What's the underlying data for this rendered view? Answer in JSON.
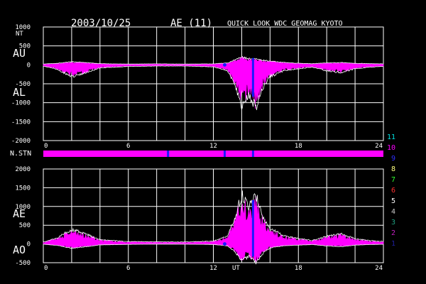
{
  "header": {
    "date": "2003/10/25",
    "index": "AE (11)",
    "source": "QUICK LOOK  WDC GEOMAG KYOTO"
  },
  "colors": {
    "background": "#000000",
    "data_fill": "#ff00ff",
    "envelope": "#ffffff",
    "marker": "#1a1aff",
    "grid": "#ffffff"
  },
  "chart_data": [
    {
      "type": "area",
      "panel": "upper",
      "unit_label": "NT",
      "series": [
        {
          "name": "AU",
          "x": [
            0,
            1,
            2,
            3,
            4,
            6,
            8,
            10,
            12,
            13,
            13.5,
            14,
            14.5,
            15,
            15.5,
            16,
            17,
            18,
            19,
            20,
            21,
            22,
            23,
            24
          ],
          "values": [
            20,
            40,
            80,
            60,
            30,
            20,
            25,
            20,
            25,
            50,
            120,
            200,
            160,
            150,
            120,
            100,
            60,
            40,
            30,
            50,
            60,
            40,
            30,
            25
          ]
        },
        {
          "name": "AL",
          "x": [
            0,
            1,
            2,
            3,
            4,
            6,
            8,
            10,
            12,
            13,
            13.5,
            14,
            14.5,
            15,
            15.5,
            16,
            17,
            18,
            19,
            20,
            21,
            22,
            23,
            24
          ],
          "values": [
            -30,
            -120,
            -300,
            -200,
            -80,
            -40,
            -30,
            -30,
            -50,
            -150,
            -500,
            -1050,
            -800,
            -1100,
            -600,
            -300,
            -150,
            -100,
            -60,
            -150,
            -200,
            -100,
            -60,
            -40
          ]
        }
      ],
      "y_ticks": [
        "1000",
        "500",
        "0",
        "-500",
        "-1000",
        "-1500",
        "-2000"
      ],
      "ylim": [
        -2000,
        1000
      ],
      "x_ticks": [
        "0",
        "6",
        "12",
        "18",
        "24"
      ],
      "xlim": [
        0,
        24
      ],
      "grid": true
    },
    {
      "type": "area",
      "panel": "lower",
      "series": [
        {
          "name": "AE",
          "x": [
            0,
            1,
            2,
            3,
            4,
            6,
            8,
            10,
            12,
            13,
            13.5,
            14,
            14.5,
            15,
            15.5,
            16,
            17,
            18,
            19,
            20,
            21,
            22,
            23,
            24
          ],
          "values": [
            50,
            160,
            380,
            260,
            110,
            60,
            55,
            50,
            75,
            200,
            650,
            1300,
            950,
            1250,
            720,
            400,
            210,
            140,
            90,
            200,
            260,
            140,
            90,
            65
          ]
        },
        {
          "name": "AO",
          "x": [
            0,
            1,
            2,
            3,
            4,
            6,
            8,
            10,
            12,
            13,
            13.5,
            14,
            14.5,
            15,
            15.5,
            16,
            17,
            18,
            19,
            20,
            21,
            22,
            23,
            24
          ],
          "values": [
            -5,
            -40,
            -110,
            -70,
            -25,
            -10,
            -3,
            -5,
            -13,
            -50,
            -190,
            -425,
            -320,
            -475,
            -240,
            -100,
            -45,
            -30,
            -15,
            -50,
            -70,
            -30,
            -15,
            -8
          ]
        }
      ],
      "y_ticks": [
        "2000",
        "1500",
        "1000",
        "500",
        "0",
        "-500"
      ],
      "ylim": [
        -500,
        2000
      ],
      "x_ticks": [
        "0",
        "6",
        "12",
        "18",
        "24"
      ],
      "x_extra_label": "UT",
      "xlim": [
        0,
        24
      ],
      "grid": true
    }
  ],
  "stations": {
    "label": "N.STN",
    "value": 10,
    "marker_times": [
      8.8,
      12.8,
      14.8
    ],
    "legend": [
      {
        "num": "11",
        "color": "#00e0e0"
      },
      {
        "num": "10",
        "color": "#ff00ff"
      },
      {
        "num": "9",
        "color": "#3030ff"
      },
      {
        "num": "8",
        "color": "#ffff80"
      },
      {
        "num": "7",
        "color": "#30ff30"
      },
      {
        "num": "6",
        "color": "#ff3030"
      },
      {
        "num": "5",
        "color": "#ffffff"
      },
      {
        "num": "4",
        "color": "#c8c8c8"
      },
      {
        "num": "3",
        "color": "#20a080"
      },
      {
        "num": "2",
        "color": "#c020c0"
      },
      {
        "num": "1",
        "color": "#2020a0"
      }
    ]
  }
}
